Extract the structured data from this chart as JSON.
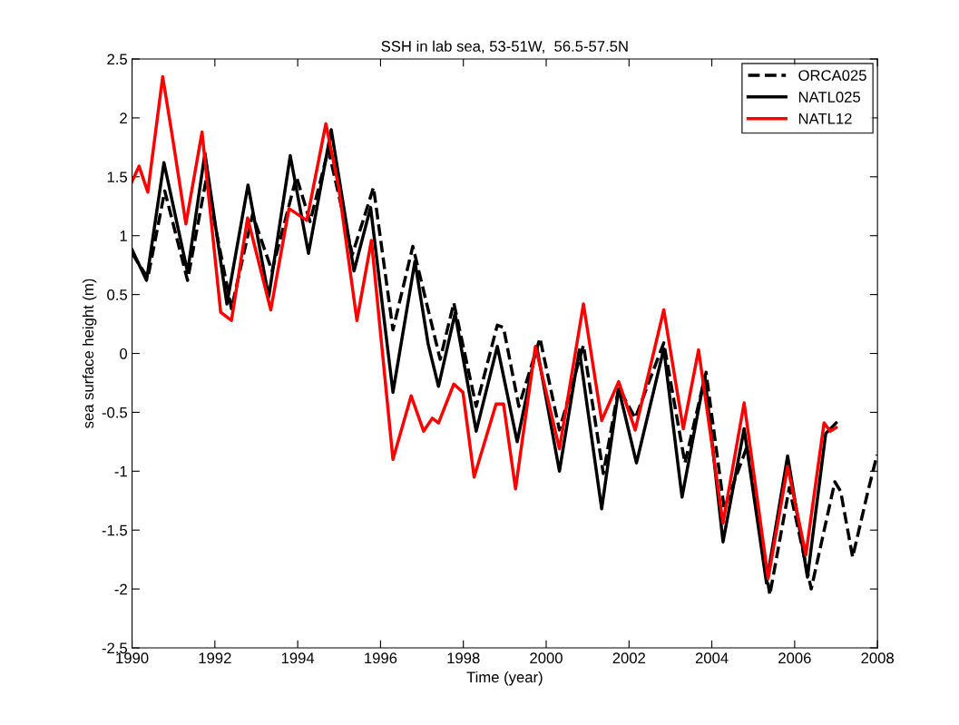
{
  "chart_data": {
    "type": "line",
    "title": "SSH in lab sea, 53-51W,  56.5-57.5N",
    "xlabel": "Time (year)",
    "ylabel": "sea surface height (m)",
    "xlim": [
      1990,
      2008
    ],
    "xticks": [
      1990,
      1992,
      1994,
      1996,
      1998,
      2000,
      2002,
      2004,
      2006,
      2008
    ],
    "ylim": [
      -2.5,
      2.5
    ],
    "yticks": [
      -2.5,
      -2,
      -1.5,
      -1,
      -0.5,
      0,
      0.5,
      1,
      1.5,
      2,
      2.5
    ],
    "grid": false,
    "legend": "top right",
    "marker": "none",
    "series": [
      {
        "name": "ORCA025",
        "color": "#000000",
        "line_style": "dashed",
        "x": [
          1990.0,
          1990.38,
          1990.79,
          1991.34,
          1991.79,
          1992.4,
          1992.91,
          1993.38,
          1993.97,
          1994.3,
          1994.74,
          1995.32,
          1995.83,
          1996.3,
          1996.78,
          1997.44,
          1997.77,
          1998.31,
          1998.82,
          1998.97,
          1999.34,
          1999.85,
          2000.32,
          2000.9,
          2001.38,
          2001.75,
          2002.15,
          2002.84,
          2003.35,
          2003.86,
          2004.3,
          2004.85,
          2005.4,
          2005.87,
          2006.4,
          2006.97,
          2007.11,
          2007.4,
          2007.77,
          2007.99
        ],
        "values": [
          0.85,
          0.64,
          1.38,
          0.62,
          1.48,
          0.38,
          1.18,
          0.7,
          1.5,
          1.12,
          1.73,
          0.84,
          1.41,
          0.2,
          0.91,
          -0.05,
          0.43,
          -0.45,
          0.24,
          0.22,
          -0.45,
          0.13,
          -0.65,
          0.07,
          -1.02,
          -0.29,
          -0.55,
          0.09,
          -0.93,
          -0.16,
          -1.32,
          -0.79,
          -2.05,
          -1.14,
          -2.0,
          -1.09,
          -1.17,
          -1.73,
          -1.17,
          -0.86
        ]
      },
      {
        "name": "NATL025",
        "color": "#000000",
        "line_style": "solid",
        "x": [
          1990.0,
          1990.35,
          1990.77,
          1991.34,
          1991.76,
          1992.29,
          1992.8,
          1993.3,
          1993.82,
          1994.26,
          1994.81,
          1995.36,
          1995.76,
          1996.3,
          1996.83,
          1997.15,
          1997.4,
          1997.8,
          1998.31,
          1998.82,
          1999.3,
          1999.77,
          2000.32,
          2000.8,
          2001.34,
          2001.75,
          2002.18,
          2002.84,
          2003.28,
          2003.83,
          2004.27,
          2004.78,
          2005.32,
          2005.83,
          2006.31,
          2006.75,
          2007.0
        ],
        "values": [
          0.88,
          0.62,
          1.62,
          0.69,
          1.7,
          0.42,
          1.43,
          0.48,
          1.68,
          0.85,
          1.9,
          0.7,
          1.24,
          -0.33,
          0.78,
          0.08,
          -0.28,
          0.34,
          -0.66,
          0.06,
          -0.75,
          0.06,
          -1.0,
          0.03,
          -1.32,
          -0.3,
          -0.93,
          0.04,
          -1.22,
          -0.19,
          -1.6,
          -0.64,
          -1.95,
          -0.87,
          -1.9,
          -0.68,
          -0.59
        ]
      },
      {
        "name": "NATL12",
        "color": "#ff0000",
        "line_style": "solid",
        "x": [
          1990.0,
          1990.17,
          1990.38,
          1990.74,
          1990.97,
          1991.3,
          1991.69,
          1992.14,
          1992.4,
          1992.79,
          1993.35,
          1993.79,
          1994.22,
          1994.68,
          1994.99,
          1995.43,
          1995.78,
          1996.3,
          1996.74,
          1997.04,
          1997.25,
          1997.4,
          1997.77,
          1997.99,
          1998.26,
          1998.79,
          1998.97,
          1999.26,
          1999.74,
          2000.32,
          2000.9,
          2001.34,
          2001.75,
          2002.15,
          2002.84,
          2003.31,
          2003.68,
          2004.27,
          2004.78,
          2005.36,
          2005.83,
          2006.27,
          2006.71,
          2006.86,
          2007.0
        ],
        "values": [
          1.46,
          1.59,
          1.37,
          2.35,
          1.85,
          1.1,
          1.88,
          0.35,
          0.28,
          1.15,
          0.37,
          1.23,
          1.13,
          1.95,
          1.41,
          0.28,
          0.96,
          -0.9,
          -0.36,
          -0.66,
          -0.55,
          -0.59,
          -0.26,
          -0.33,
          -1.05,
          -0.43,
          -0.43,
          -1.15,
          0.06,
          -0.81,
          0.42,
          -0.57,
          -0.24,
          -0.65,
          0.37,
          -0.64,
          0.03,
          -1.44,
          -0.42,
          -1.91,
          -0.96,
          -1.71,
          -0.59,
          -0.66,
          -0.63
        ]
      }
    ]
  }
}
